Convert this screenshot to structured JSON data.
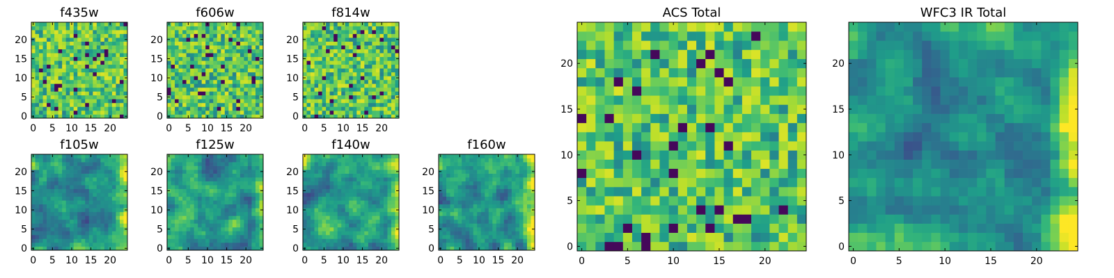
{
  "chart_data": [
    {
      "type": "heatmap",
      "title": "f435w",
      "x_ticks": [
        "0",
        "5",
        "10",
        "15",
        "20"
      ],
      "y_ticks": [
        "0",
        "5",
        "10",
        "15",
        "20"
      ],
      "grid_size": 25,
      "colormap": "viridis"
    },
    {
      "type": "heatmap",
      "title": "f606w",
      "x_ticks": [
        "0",
        "5",
        "10",
        "15",
        "20"
      ],
      "y_ticks": [
        "0",
        "5",
        "10",
        "15",
        "20"
      ],
      "grid_size": 25,
      "colormap": "viridis"
    },
    {
      "type": "heatmap",
      "title": "f814w",
      "x_ticks": [
        "0",
        "5",
        "10",
        "15",
        "20"
      ],
      "y_ticks": [
        "0",
        "5",
        "10",
        "15",
        "20"
      ],
      "grid_size": 25,
      "colormap": "viridis"
    },
    {
      "type": "heatmap",
      "title": "f105w",
      "x_ticks": [
        "0",
        "5",
        "10",
        "15",
        "20"
      ],
      "y_ticks": [
        "0",
        "5",
        "10",
        "15",
        "20"
      ],
      "grid_size": 25,
      "colormap": "viridis"
    },
    {
      "type": "heatmap",
      "title": "f125w",
      "x_ticks": [
        "0",
        "5",
        "10",
        "15",
        "20"
      ],
      "y_ticks": [
        "0",
        "5",
        "10",
        "15",
        "20"
      ],
      "grid_size": 25,
      "colormap": "viridis"
    },
    {
      "type": "heatmap",
      "title": "f140w",
      "x_ticks": [
        "0",
        "5",
        "10",
        "15",
        "20"
      ],
      "y_ticks": [
        "0",
        "5",
        "10",
        "15",
        "20"
      ],
      "grid_size": 25,
      "colormap": "viridis"
    },
    {
      "type": "heatmap",
      "title": "f160w",
      "x_ticks": [
        "0",
        "5",
        "10",
        "15",
        "20"
      ],
      "y_ticks": [
        "0",
        "5",
        "10",
        "15",
        "20"
      ],
      "grid_size": 25,
      "colormap": "viridis"
    },
    {
      "type": "heatmap",
      "title": "ACS Total",
      "x_ticks": [
        "0",
        "5",
        "10",
        "15",
        "20"
      ],
      "y_ticks": [
        "0",
        "5",
        "10",
        "15",
        "20"
      ],
      "grid_size": 25,
      "colormap": "viridis"
    },
    {
      "type": "heatmap",
      "title": "WFC3 IR Total",
      "x_ticks": [
        "0",
        "5",
        "10",
        "15",
        "20"
      ],
      "y_ticks": [
        "0",
        "5",
        "10",
        "15",
        "20"
      ],
      "grid_size": 25,
      "colormap": "viridis"
    }
  ]
}
